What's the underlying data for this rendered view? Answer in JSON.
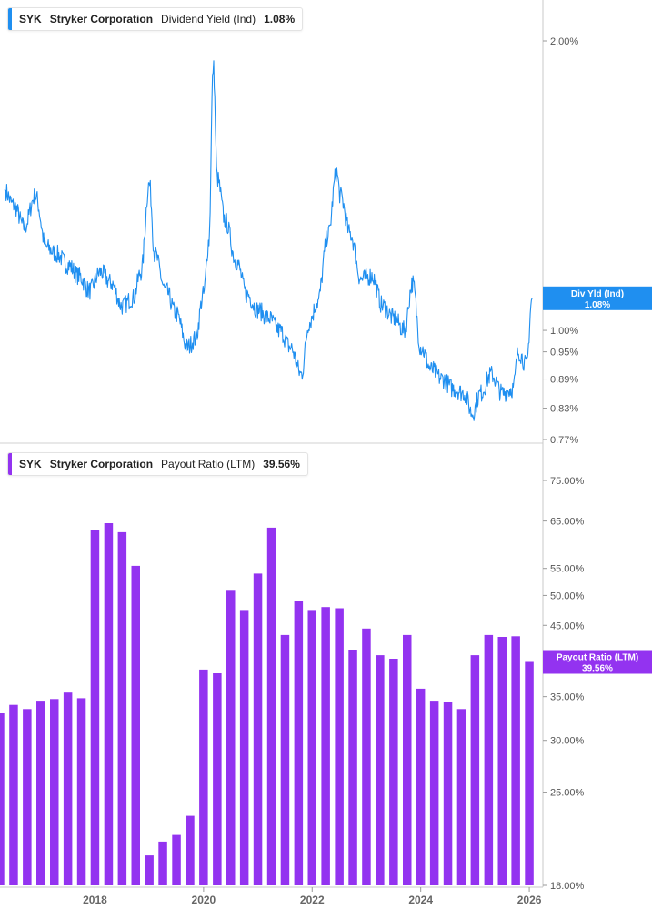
{
  "panels": {
    "top": {
      "ticker": "SYK",
      "company": "Stryker Corporation",
      "metric": "Dividend Yield (Ind)",
      "value": "1.08%",
      "badge_line1": "Div Yld (Ind)",
      "badge_line2": "1.08%",
      "color": "#1f8ff0"
    },
    "bottom": {
      "ticker": "SYK",
      "company": "Stryker Corporation",
      "metric": "Payout Ratio (LTM)",
      "value": "39.56%",
      "badge_line1": "Payout Ratio (LTM)",
      "badge_line2": "39.56%",
      "color": "#9333f0"
    }
  },
  "chart_data": [
    {
      "type": "line",
      "title": "SYK Stryker Corporation Dividend Yield (Ind) 1.08%",
      "series": [
        {
          "name": "Dividend Yield (Ind)",
          "x": [
            2016.33,
            2016.5,
            2016.7,
            2016.9,
            2017.1,
            2017.3,
            2017.5,
            2017.7,
            2017.9,
            2018.1,
            2018.3,
            2018.5,
            2018.7,
            2018.85,
            2019.0,
            2019.1,
            2019.3,
            2019.5,
            2019.7,
            2019.85,
            2020.0,
            2020.1,
            2020.18,
            2020.25,
            2020.4,
            2020.6,
            2020.8,
            2021.0,
            2021.2,
            2021.4,
            2021.6,
            2021.8,
            2021.95,
            2022.1,
            2022.3,
            2022.45,
            2022.52,
            2022.7,
            2022.9,
            2023.1,
            2023.3,
            2023.5,
            2023.7,
            2023.85,
            2024.0,
            2024.2,
            2024.4,
            2024.6,
            2024.8,
            2024.95,
            2025.1,
            2025.3,
            2025.5,
            2025.7,
            2025.8,
            2025.95,
            2026.05
          ],
          "y": [
            1.4,
            1.35,
            1.28,
            1.38,
            1.22,
            1.2,
            1.17,
            1.14,
            1.1,
            1.15,
            1.12,
            1.06,
            1.08,
            1.15,
            1.42,
            1.2,
            1.1,
            1.04,
            0.96,
            0.98,
            1.09,
            1.24,
            1.88,
            1.44,
            1.3,
            1.18,
            1.09,
            1.05,
            1.03,
            1.0,
            0.96,
            0.9,
            1.02,
            1.07,
            1.26,
            1.46,
            1.38,
            1.26,
            1.13,
            1.14,
            1.06,
            1.03,
            1.0,
            1.12,
            0.96,
            0.91,
            0.89,
            0.87,
            0.86,
            0.82,
            0.86,
            0.9,
            0.86,
            0.87,
            0.95,
            0.92,
            1.08
          ]
        }
      ],
      "y_ticks": [
        "2.00%",
        "1.00%",
        "0.95%",
        "0.89%",
        "0.83%",
        "0.77%"
      ],
      "ylim": [
        0.77,
        2.1
      ],
      "scale": "log",
      "last_value": "1.08%"
    },
    {
      "type": "bar",
      "title": "SYK Stryker Corporation Payout Ratio (LTM) 39.56%",
      "series": [
        {
          "name": "Payout Ratio (LTM)",
          "x": [
            2016.25,
            2016.5,
            2016.75,
            2017.0,
            2017.25,
            2017.5,
            2017.75,
            2018.0,
            2018.25,
            2018.5,
            2018.75,
            2019.0,
            2019.25,
            2019.5,
            2019.75,
            2020.0,
            2020.25,
            2020.5,
            2020.75,
            2021.0,
            2021.25,
            2021.5,
            2021.75,
            2022.0,
            2022.25,
            2022.5,
            2022.75,
            2023.0,
            2023.25,
            2023.5,
            2023.75,
            2024.0,
            2024.25,
            2024.5,
            2024.75,
            2025.0,
            2025.25,
            2025.5,
            2025.75,
            2026.0
          ],
          "values": [
            33.0,
            34.0,
            33.5,
            34.5,
            34.7,
            35.5,
            34.8,
            63.0,
            64.5,
            62.5,
            55.5,
            20.0,
            21.0,
            21.5,
            23.0,
            38.5,
            38.0,
            51.0,
            47.5,
            54.0,
            63.5,
            43.5,
            49.0,
            47.5,
            48.0,
            47.8,
            41.3,
            44.5,
            40.5,
            40.0,
            43.5,
            36.0,
            34.5,
            34.3,
            33.5,
            40.5,
            43.5,
            43.2,
            43.3,
            39.56
          ]
        }
      ],
      "y_ticks": [
        "75.00%",
        "65.00%",
        "55.00%",
        "50.00%",
        "45.00%",
        "35.00%",
        "30.00%",
        "25.00%",
        "18.00%"
      ],
      "ylim": [
        18,
        80
      ],
      "scale": "log",
      "last_value": "39.56%"
    }
  ],
  "x_axis": {
    "ticks": [
      "2018",
      "2020",
      "2022",
      "2024",
      "2026"
    ],
    "tick_values": [
      2018,
      2020,
      2022,
      2024,
      2026
    ],
    "range": [
      2016.25,
      2026.25
    ]
  }
}
